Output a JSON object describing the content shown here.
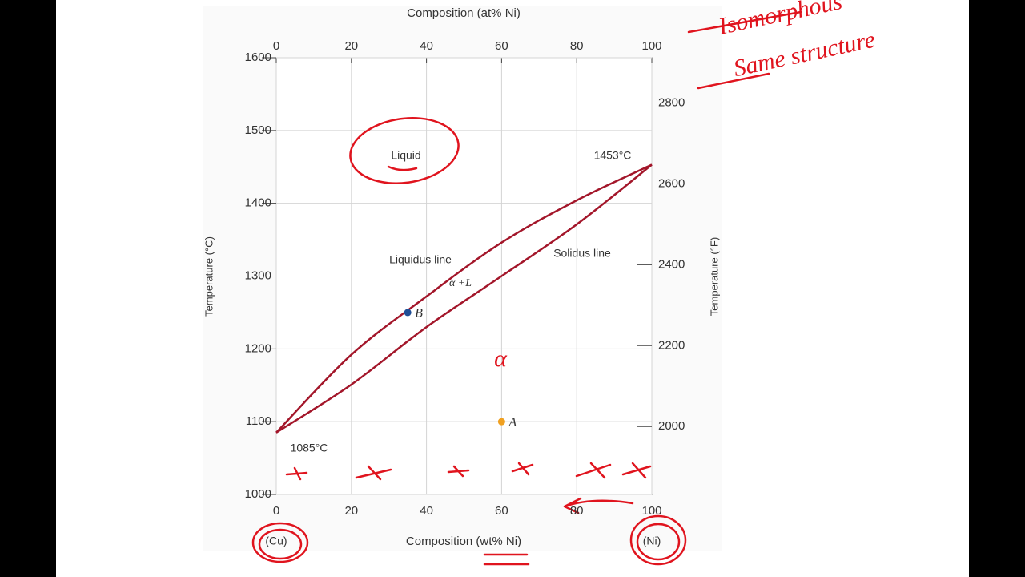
{
  "chart_data": {
    "type": "line",
    "x_label": "Composition (wt% Ni)",
    "x2_label": "Composition (at% Ni)",
    "y_label": "Temperature (°C)",
    "y2_label": "Temperature (°F)",
    "x": [
      0,
      20,
      40,
      60,
      80,
      100
    ],
    "series": [
      {
        "name": "Liquidus line",
        "color": "#a3162a",
        "values": [
          1085,
          1192,
          1272,
          1346,
          1404,
          1453
        ]
      },
      {
        "name": "Solidus line",
        "color": "#a3162a",
        "values": [
          1085,
          1151,
          1230,
          1300,
          1371,
          1453
        ]
      }
    ],
    "points": [
      {
        "label": "A",
        "x": 60,
        "y": 1100,
        "color": "#f0a020"
      },
      {
        "label": "B",
        "x": 35,
        "y": 1250,
        "color": "#1f4e96"
      }
    ],
    "xlim": [
      0,
      100
    ],
    "xticks": [
      0,
      20,
      40,
      60,
      80,
      100
    ],
    "x2lim": [
      0,
      100
    ],
    "x2ticks": [
      0,
      20,
      40,
      60,
      80,
      100
    ],
    "ylim": [
      1000,
      1600
    ],
    "yticks": [
      1000,
      1100,
      1200,
      1300,
      1400,
      1500,
      1600
    ],
    "y2lim": [
      1832,
      2912
    ],
    "y2ticks": [
      2000,
      2200,
      2400,
      2600,
      2800
    ],
    "grid": true,
    "annotations": [
      "Liquid",
      "α +L",
      "1453°C",
      "1085°C",
      "(Cu)",
      "(Ni)",
      "Isomorphous",
      "Same structure",
      "α"
    ]
  }
}
